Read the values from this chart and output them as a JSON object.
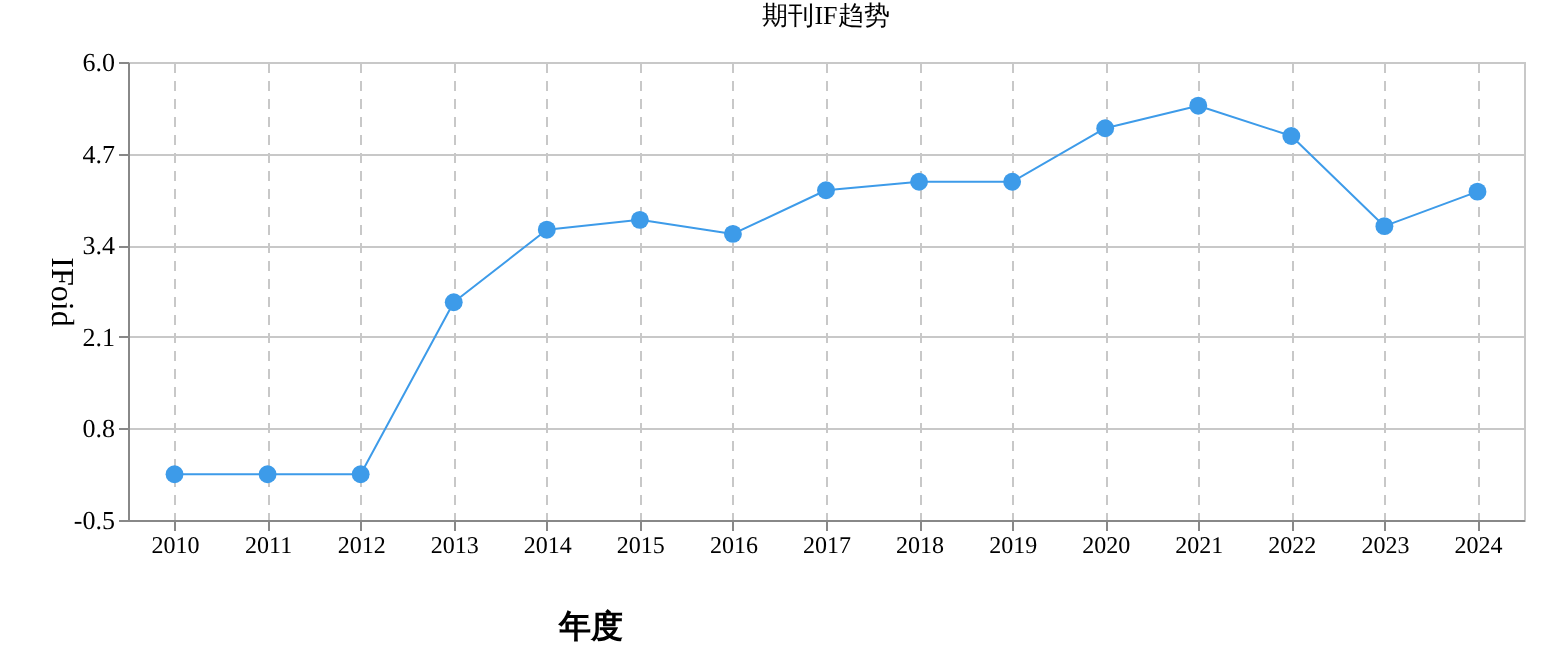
{
  "chart_data": {
    "type": "line",
    "title": "期刊IF趋势",
    "xlabel": "年度",
    "ylabel": "IFoid",
    "categories": [
      "2010",
      "2011",
      "2012",
      "2013",
      "2014",
      "2015",
      "2016",
      "2017",
      "2018",
      "2019",
      "2020",
      "2021",
      "2022",
      "2023",
      "2024"
    ],
    "series": [
      {
        "color": "#3d9be9",
        "values": [
          0.15,
          0.15,
          0.15,
          2.59,
          3.62,
          3.76,
          3.56,
          4.18,
          4.3,
          4.3,
          5.06,
          5.38,
          4.95,
          3.67,
          4.16
        ]
      }
    ],
    "ylim": [
      -0.5,
      6.0
    ],
    "yticks": [
      {
        "value": -0.5,
        "label": "-0.5"
      },
      {
        "value": 0.8,
        "label": "0.8"
      },
      {
        "value": 2.1,
        "label": "2.1"
      },
      {
        "value": 3.4,
        "label": "3.4"
      },
      {
        "value": 4.7,
        "label": "4.7"
      },
      {
        "value": 6.0,
        "label": "6.0"
      }
    ],
    "grid": true,
    "marker": "circle",
    "line_style": "solid"
  }
}
